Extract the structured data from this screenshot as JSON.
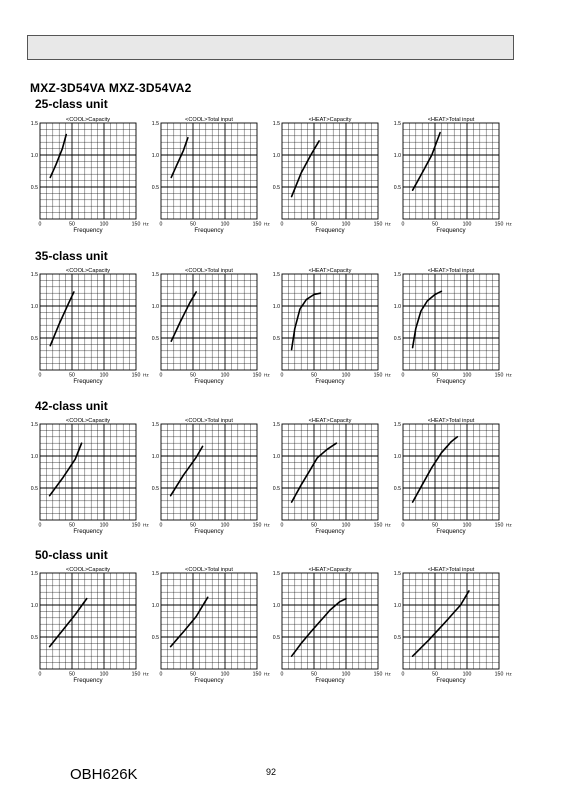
{
  "header": {
    "box": ""
  },
  "model_line": "MXZ-3D54VA   MXZ-3D54VA2",
  "sections": [
    {
      "title": "25-class unit"
    },
    {
      "title": "35-class unit"
    },
    {
      "title": "42-class unit"
    },
    {
      "title": "50-class unit"
    }
  ],
  "axis": {
    "xlabel": "Frequency",
    "xunit": "Hz",
    "xticks": [
      "0",
      "50",
      "100",
      "150"
    ],
    "yticks": [
      "1.5",
      "1.0",
      "0.5"
    ]
  },
  "chart_titles": [
    "<COOL>Capacity",
    "<COOL>Total input",
    "<HEAT>Capacity",
    "<HEAT>Total input"
  ],
  "chart_data": [
    {
      "section": "25-class unit",
      "type": "line",
      "title": "<COOL>Capacity",
      "xlabel": "Frequency",
      "xlim": [
        0,
        150
      ],
      "ylim": [
        0,
        1.5
      ],
      "series": [
        {
          "x": [
            16,
            25,
            35,
            41
          ],
          "y": [
            0.65,
            0.85,
            1.1,
            1.32
          ]
        }
      ]
    },
    {
      "section": "25-class unit",
      "type": "line",
      "title": "<COOL>Total input",
      "xlabel": "Frequency",
      "xlim": [
        0,
        150
      ],
      "ylim": [
        0,
        1.5
      ],
      "series": [
        {
          "x": [
            16,
            25,
            35,
            42
          ],
          "y": [
            0.65,
            0.85,
            1.07,
            1.27
          ]
        }
      ]
    },
    {
      "section": "25-class unit",
      "type": "line",
      "title": "<HEAT>Capacity",
      "xlabel": "Frequency",
      "xlim": [
        0,
        150
      ],
      "ylim": [
        0,
        1.5
      ],
      "series": [
        {
          "x": [
            15,
            30,
            45,
            58
          ],
          "y": [
            0.35,
            0.72,
            1.0,
            1.22
          ]
        }
      ]
    },
    {
      "section": "25-class unit",
      "type": "line",
      "title": "<HEAT>Total input",
      "xlabel": "Frequency",
      "xlim": [
        0,
        150
      ],
      "ylim": [
        0,
        1.5
      ],
      "series": [
        {
          "x": [
            15,
            30,
            45,
            58
          ],
          "y": [
            0.45,
            0.72,
            1.0,
            1.35
          ]
        }
      ]
    },
    {
      "section": "35-class unit",
      "type": "line",
      "title": "<COOL>Capacity",
      "xlabel": "Frequency",
      "xlim": [
        0,
        150
      ],
      "ylim": [
        0,
        1.5
      ],
      "series": [
        {
          "x": [
            16,
            30,
            45,
            53
          ],
          "y": [
            0.38,
            0.72,
            1.05,
            1.22
          ]
        }
      ]
    },
    {
      "section": "35-class unit",
      "type": "line",
      "title": "<COOL>Total input",
      "xlabel": "Frequency",
      "xlim": [
        0,
        150
      ],
      "ylim": [
        0,
        1.5
      ],
      "series": [
        {
          "x": [
            16,
            30,
            45,
            55
          ],
          "y": [
            0.45,
            0.75,
            1.05,
            1.22
          ]
        }
      ]
    },
    {
      "section": "35-class unit",
      "type": "line",
      "title": "<HEAT>Capacity",
      "xlabel": "Frequency",
      "xlim": [
        0,
        150
      ],
      "ylim": [
        0,
        1.5
      ],
      "series": [
        {
          "x": [
            15,
            20,
            28,
            38,
            50,
            60
          ],
          "y": [
            0.32,
            0.65,
            0.95,
            1.1,
            1.18,
            1.2
          ]
        }
      ]
    },
    {
      "section": "35-class unit",
      "type": "line",
      "title": "<HEAT>Total input",
      "xlabel": "Frequency",
      "xlim": [
        0,
        150
      ],
      "ylim": [
        0,
        1.5
      ],
      "series": [
        {
          "x": [
            15,
            20,
            28,
            38,
            50,
            60
          ],
          "y": [
            0.35,
            0.65,
            0.92,
            1.08,
            1.18,
            1.23
          ]
        }
      ]
    },
    {
      "section": "42-class unit",
      "type": "line",
      "title": "<COOL>Capacity",
      "xlabel": "Frequency",
      "xlim": [
        0,
        150
      ],
      "ylim": [
        0,
        1.5
      ],
      "series": [
        {
          "x": [
            15,
            35,
            55,
            65
          ],
          "y": [
            0.38,
            0.65,
            0.95,
            1.2
          ]
        }
      ]
    },
    {
      "section": "42-class unit",
      "type": "line",
      "title": "<COOL>Total input",
      "xlabel": "Frequency",
      "xlim": [
        0,
        150
      ],
      "ylim": [
        0,
        1.5
      ],
      "series": [
        {
          "x": [
            15,
            35,
            55,
            65
          ],
          "y": [
            0.38,
            0.7,
            0.98,
            1.15
          ]
        }
      ]
    },
    {
      "section": "42-class unit",
      "type": "line",
      "title": "<HEAT>Capacity",
      "xlabel": "Frequency",
      "xlim": [
        0,
        150
      ],
      "ylim": [
        0,
        1.5
      ],
      "series": [
        {
          "x": [
            15,
            30,
            45,
            55,
            70,
            85
          ],
          "y": [
            0.28,
            0.55,
            0.8,
            0.97,
            1.1,
            1.2
          ]
        }
      ]
    },
    {
      "section": "42-class unit",
      "type": "line",
      "title": "<HEAT>Total input",
      "xlabel": "Frequency",
      "xlim": [
        0,
        150
      ],
      "ylim": [
        0,
        1.5
      ],
      "series": [
        {
          "x": [
            15,
            30,
            45,
            60,
            75,
            85
          ],
          "y": [
            0.28,
            0.55,
            0.82,
            1.05,
            1.22,
            1.3
          ]
        }
      ]
    },
    {
      "section": "50-class unit",
      "type": "line",
      "title": "<COOL>Capacity",
      "xlabel": "Frequency",
      "xlim": [
        0,
        150
      ],
      "ylim": [
        0,
        1.5
      ],
      "series": [
        {
          "x": [
            15,
            35,
            55,
            73
          ],
          "y": [
            0.35,
            0.6,
            0.85,
            1.1
          ]
        }
      ]
    },
    {
      "section": "50-class unit",
      "type": "line",
      "title": "<COOL>Total input",
      "xlabel": "Frequency",
      "xlim": [
        0,
        150
      ],
      "ylim": [
        0,
        1.5
      ],
      "series": [
        {
          "x": [
            15,
            35,
            55,
            73
          ],
          "y": [
            0.35,
            0.58,
            0.82,
            1.12
          ]
        }
      ]
    },
    {
      "section": "50-class unit",
      "type": "line",
      "title": "<HEAT>Capacity",
      "xlabel": "Frequency",
      "xlim": [
        0,
        150
      ],
      "ylim": [
        0,
        1.5
      ],
      "series": [
        {
          "x": [
            15,
            30,
            45,
            60,
            75,
            90,
            100
          ],
          "y": [
            0.2,
            0.4,
            0.58,
            0.75,
            0.92,
            1.05,
            1.1
          ]
        }
      ]
    },
    {
      "section": "50-class unit",
      "type": "line",
      "title": "<HEAT>Total input",
      "xlabel": "Frequency",
      "xlim": [
        0,
        150
      ],
      "ylim": [
        0,
        1.5
      ],
      "series": [
        {
          "x": [
            15,
            40,
            65,
            90,
            103
          ],
          "y": [
            0.2,
            0.45,
            0.72,
            1.0,
            1.22
          ]
        }
      ]
    }
  ],
  "footer": {
    "doc_code": "OBH626K",
    "page_number": "92"
  }
}
